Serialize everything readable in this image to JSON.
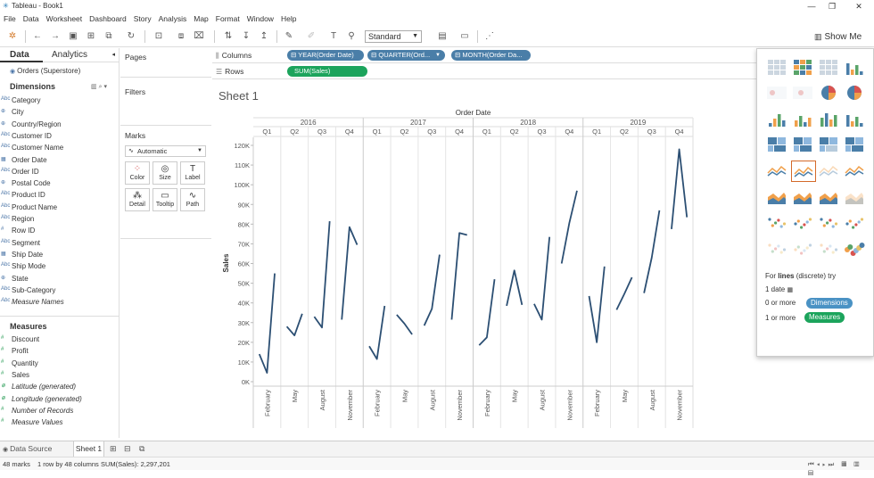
{
  "window": {
    "title": "Tableau - Book1"
  },
  "menu": [
    "File",
    "Data",
    "Worksheet",
    "Dashboard",
    "Story",
    "Analysis",
    "Map",
    "Format",
    "Window",
    "Help"
  ],
  "toolbar": {
    "fit": "Standard",
    "show_me": "Show Me"
  },
  "data_pane": {
    "tabs": {
      "data": "Data",
      "analytics": "Analytics"
    },
    "datasource": "Orders (Superstore)",
    "dimensions_title": "Dimensions",
    "dimensions": [
      {
        "icon": "Abc",
        "label": "Category"
      },
      {
        "icon": "⊕",
        "label": "City"
      },
      {
        "icon": "⊕",
        "label": "Country/Region"
      },
      {
        "icon": "Abc",
        "label": "Customer ID"
      },
      {
        "icon": "Abc",
        "label": "Customer Name"
      },
      {
        "icon": "▦",
        "label": "Order Date"
      },
      {
        "icon": "Abc",
        "label": "Order ID"
      },
      {
        "icon": "⊕",
        "label": "Postal Code"
      },
      {
        "icon": "Abc",
        "label": "Product ID"
      },
      {
        "icon": "Abc",
        "label": "Product Name"
      },
      {
        "icon": "Abc",
        "label": "Region"
      },
      {
        "icon": "#",
        "label": "Row ID"
      },
      {
        "icon": "Abc",
        "label": "Segment"
      },
      {
        "icon": "▦",
        "label": "Ship Date"
      },
      {
        "icon": "Abc",
        "label": "Ship Mode"
      },
      {
        "icon": "⊕",
        "label": "State"
      },
      {
        "icon": "Abc",
        "label": "Sub-Category"
      },
      {
        "icon": "Abc",
        "label": "Measure Names",
        "italic": true
      }
    ],
    "measures_title": "Measures",
    "measures": [
      {
        "icon": "#",
        "label": "Discount"
      },
      {
        "icon": "#",
        "label": "Profit"
      },
      {
        "icon": "#",
        "label": "Quantity"
      },
      {
        "icon": "#",
        "label": "Sales"
      },
      {
        "icon": "⊕",
        "label": "Latitude (generated)",
        "italic": true
      },
      {
        "icon": "⊕",
        "label": "Longitude (generated)",
        "italic": true
      },
      {
        "icon": "#",
        "label": "Number of Records",
        "italic": true
      },
      {
        "icon": "#",
        "label": "Measure Values",
        "italic": true
      }
    ]
  },
  "cards": {
    "pages": "Pages",
    "filters": "Filters",
    "marks": "Marks",
    "mark_type": "Automatic",
    "mark_buttons": [
      {
        "glyph": "⁘",
        "label": "Color"
      },
      {
        "glyph": "◎",
        "label": "Size"
      },
      {
        "glyph": "T",
        "label": "Label"
      },
      {
        "glyph": "⁂",
        "label": "Detail"
      },
      {
        "glyph": "▭",
        "label": "Tooltip"
      },
      {
        "glyph": "∿",
        "label": "Path"
      }
    ]
  },
  "shelves": {
    "columns_label": "Columns",
    "rows_label": "Rows",
    "columns_pills": [
      "⊟ YEAR(Order Date)",
      "⊟ QUARTER(Ord...",
      "⊟ MONTH(Order Da..."
    ],
    "rows_pills": [
      "SUM(Sales)"
    ]
  },
  "sheet_title": "Sheet 1",
  "chart_data": {
    "type": "line",
    "title": "Order Date",
    "ylabel": "Sales",
    "ylim": [
      0,
      125000
    ],
    "yticks": [
      0,
      10000,
      20000,
      30000,
      40000,
      50000,
      60000,
      70000,
      80000,
      90000,
      100000,
      110000,
      120000
    ],
    "ytick_labels": [
      "0K",
      "10K",
      "20K",
      "30K",
      "40K",
      "50K",
      "60K",
      "70K",
      "80K",
      "90K",
      "100K",
      "110K",
      "120K"
    ],
    "years": [
      "2016",
      "2017",
      "2018",
      "2019"
    ],
    "quarters": [
      "Q1",
      "Q2",
      "Q3",
      "Q4"
    ],
    "month_labels": [
      {
        "month": 2,
        "label": "February"
      },
      {
        "month": 5,
        "label": "May"
      },
      {
        "month": 8,
        "label": "August"
      },
      {
        "month": 11,
        "label": "November"
      }
    ],
    "series": [
      {
        "values": [
          [
            14000,
            4500,
            55000
          ],
          [
            28000,
            23500,
            34500
          ],
          [
            33000,
            27500,
            81500
          ],
          [
            31500,
            78500,
            69500
          ],
          [
            18000,
            11500,
            38500
          ],
          [
            34000,
            29500,
            24000
          ],
          [
            28500,
            37000,
            64500
          ],
          [
            31500,
            75500,
            74500
          ],
          [
            18500,
            22500,
            52000
          ],
          [
            38500,
            56500,
            39000
          ],
          [
            39500,
            31500,
            73500
          ],
          [
            60000,
            80500,
            97000
          ],
          [
            43500,
            20000,
            58500
          ],
          [
            36500,
            44500,
            53000
          ],
          [
            45000,
            63000,
            87000
          ],
          [
            77500,
            118000,
            83500
          ]
        ]
      }
    ]
  },
  "show_me": {
    "hint_prefix": "For ",
    "hint_bold": "lines",
    "hint_suffix": " (discrete) try",
    "req_date": "1 date",
    "req_dim_prefix": "0 or more",
    "req_dim": "Dimensions",
    "req_meas_prefix": "1 or more",
    "req_meas": "Measures",
    "colors": {
      "dimensions": "#4a92c4",
      "measures": "#1ca45c",
      "selected": "#d46a2a"
    }
  },
  "bottom": {
    "data_source_tab": "Data Source",
    "sheet_tab": "Sheet 1"
  },
  "status": {
    "marks": "48 marks",
    "rows_cols": "1 row by 48 columns",
    "sum": "SUM(Sales): 2,297,201"
  }
}
